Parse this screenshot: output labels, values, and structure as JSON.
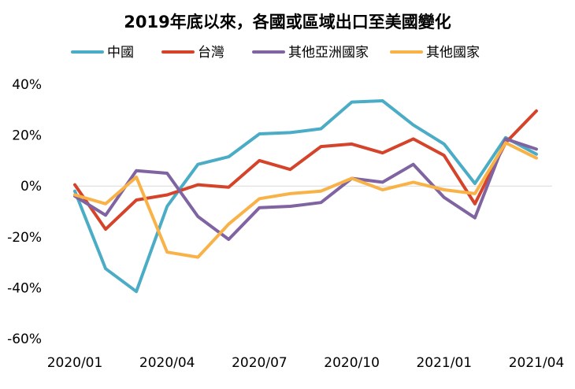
{
  "chart_data": {
    "type": "line",
    "title": "2019年底以來，各國或區域出口至美國變化",
    "xlabel": "",
    "ylabel": "",
    "x": [
      "2020/01",
      "2020/02",
      "2020/03",
      "2020/04",
      "2020/05",
      "2020/06",
      "2020/07",
      "2020/08",
      "2020/09",
      "2020/10",
      "2020/11",
      "2020/12",
      "2021/01",
      "2021/02",
      "2021/03",
      "2021/04"
    ],
    "x_tick_labels": [
      "2020/01",
      "2020/04",
      "2020/07",
      "2020/10",
      "2021/01",
      "2021/04"
    ],
    "x_tick_index": [
      0,
      3,
      6,
      9,
      12,
      15
    ],
    "y_ticks": [
      40,
      20,
      0,
      -20,
      -40,
      -60
    ],
    "y_tick_labels": [
      "40%",
      "20%",
      "0%",
      "-20%",
      "-40%",
      "-60%"
    ],
    "ylim": [
      -60,
      40
    ],
    "y_unit": "%",
    "grid": "zero-line only",
    "legend_position": "top",
    "series": [
      {
        "name": "中國",
        "color": "#4bacc6",
        "values": [
          -2,
          -32.5,
          -41.5,
          -8,
          8.5,
          11.5,
          20.5,
          21,
          22.5,
          33,
          33.5,
          24,
          16.5,
          1,
          19,
          12.5
        ]
      },
      {
        "name": "台灣",
        "color": "#d5442a",
        "values": [
          0.5,
          -17,
          -5.5,
          -3.5,
          0.5,
          -0.5,
          10,
          6.5,
          15.5,
          16.5,
          13,
          18.5,
          12,
          -7,
          17,
          29.5
        ]
      },
      {
        "name": "其他亞洲國家",
        "color": "#8064a2",
        "values": [
          -4,
          -11.5,
          6,
          5,
          -12,
          -21,
          -8.5,
          -8,
          -6.5,
          3,
          1.5,
          8.5,
          -4.5,
          -12.5,
          18.5,
          14.5
        ]
      },
      {
        "name": "其他國家",
        "color": "#f9b248",
        "values": [
          -3.5,
          -7,
          3.5,
          -26,
          -28,
          -15,
          -5,
          -3,
          -2,
          3,
          -1.5,
          1.5,
          -1.5,
          -3,
          17,
          11
        ]
      }
    ]
  }
}
